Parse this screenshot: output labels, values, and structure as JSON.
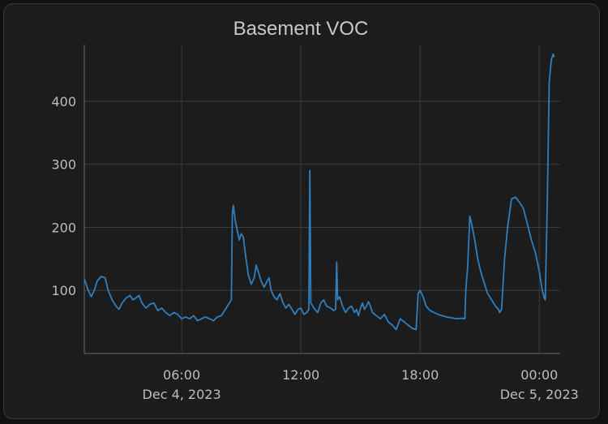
{
  "colors": {
    "background": "#1c1c1c",
    "grid": "#3c3c3c",
    "line": "#2f7fbf",
    "text": "#bdbdbd"
  },
  "chart_data": {
    "type": "line",
    "title": "Basement VOC",
    "xlabel": "",
    "ylabel": "",
    "x_unit": "hours since 00:00 Dec 4, 2023",
    "xlim": [
      1.1,
      25.05
    ],
    "ylim": [
      0,
      490
    ],
    "y_ticks": [
      100,
      200,
      300,
      400
    ],
    "x_ticks": [
      {
        "x": 6,
        "label": "06:00",
        "sublabel": "Dec 4, 2023"
      },
      {
        "x": 12,
        "label": "12:00",
        "sublabel": ""
      },
      {
        "x": 18,
        "label": "18:00",
        "sublabel": ""
      },
      {
        "x": 24,
        "label": "00:00",
        "sublabel": "Dec 5, 2023"
      }
    ],
    "series": [
      {
        "name": "Basement VOC",
        "points": [
          [
            1.1,
            118
          ],
          [
            1.3,
            100
          ],
          [
            1.45,
            90
          ],
          [
            1.6,
            100
          ],
          [
            1.75,
            115
          ],
          [
            1.95,
            122
          ],
          [
            2.15,
            120
          ],
          [
            2.3,
            100
          ],
          [
            2.5,
            85
          ],
          [
            2.7,
            75
          ],
          [
            2.85,
            70
          ],
          [
            3.0,
            80
          ],
          [
            3.2,
            88
          ],
          [
            3.4,
            92
          ],
          [
            3.55,
            85
          ],
          [
            3.7,
            88
          ],
          [
            3.85,
            92
          ],
          [
            4.0,
            80
          ],
          [
            4.2,
            72
          ],
          [
            4.4,
            78
          ],
          [
            4.6,
            80
          ],
          [
            4.8,
            68
          ],
          [
            5.0,
            72
          ],
          [
            5.2,
            65
          ],
          [
            5.4,
            60
          ],
          [
            5.6,
            65
          ],
          [
            5.8,
            62
          ],
          [
            6.0,
            55
          ],
          [
            6.2,
            58
          ],
          [
            6.4,
            55
          ],
          [
            6.6,
            60
          ],
          [
            6.8,
            52
          ],
          [
            7.0,
            55
          ],
          [
            7.2,
            58
          ],
          [
            7.4,
            55
          ],
          [
            7.6,
            52
          ],
          [
            7.8,
            58
          ],
          [
            8.0,
            60
          ],
          [
            8.2,
            70
          ],
          [
            8.4,
            80
          ],
          [
            8.5,
            85
          ],
          [
            8.55,
            220
          ],
          [
            8.6,
            235
          ],
          [
            8.7,
            210
          ],
          [
            8.8,
            195
          ],
          [
            8.9,
            180
          ],
          [
            9.0,
            190
          ],
          [
            9.1,
            185
          ],
          [
            9.2,
            160
          ],
          [
            9.35,
            125
          ],
          [
            9.5,
            110
          ],
          [
            9.65,
            120
          ],
          [
            9.75,
            140
          ],
          [
            9.85,
            130
          ],
          [
            10.0,
            115
          ],
          [
            10.15,
            105
          ],
          [
            10.3,
            115
          ],
          [
            10.4,
            120
          ],
          [
            10.5,
            100
          ],
          [
            10.65,
            90
          ],
          [
            10.8,
            85
          ],
          [
            10.95,
            95
          ],
          [
            11.1,
            80
          ],
          [
            11.25,
            72
          ],
          [
            11.4,
            78
          ],
          [
            11.55,
            70
          ],
          [
            11.7,
            62
          ],
          [
            11.85,
            70
          ],
          [
            12.0,
            72
          ],
          [
            12.15,
            62
          ],
          [
            12.3,
            65
          ],
          [
            12.4,
            70
          ],
          [
            12.45,
            290
          ],
          [
            12.5,
            80
          ],
          [
            12.6,
            75
          ],
          [
            12.7,
            70
          ],
          [
            12.85,
            65
          ],
          [
            13.0,
            80
          ],
          [
            13.15,
            85
          ],
          [
            13.3,
            75
          ],
          [
            13.5,
            72
          ],
          [
            13.65,
            68
          ],
          [
            13.75,
            70
          ],
          [
            13.8,
            145
          ],
          [
            13.85,
            85
          ],
          [
            13.95,
            90
          ],
          [
            14.1,
            75
          ],
          [
            14.25,
            65
          ],
          [
            14.4,
            72
          ],
          [
            14.55,
            75
          ],
          [
            14.7,
            65
          ],
          [
            14.8,
            70
          ],
          [
            14.9,
            60
          ],
          [
            15.0,
            72
          ],
          [
            15.1,
            80
          ],
          [
            15.2,
            70
          ],
          [
            15.3,
            75
          ],
          [
            15.4,
            82
          ],
          [
            15.5,
            75
          ],
          [
            15.6,
            65
          ],
          [
            15.8,
            60
          ],
          [
            16.0,
            55
          ],
          [
            16.2,
            62
          ],
          [
            16.4,
            50
          ],
          [
            16.6,
            45
          ],
          [
            16.8,
            38
          ],
          [
            17.0,
            55
          ],
          [
            17.2,
            50
          ],
          [
            17.4,
            45
          ],
          [
            17.6,
            40
          ],
          [
            17.8,
            38
          ],
          [
            17.9,
            95
          ],
          [
            18.0,
            100
          ],
          [
            18.15,
            90
          ],
          [
            18.3,
            75
          ],
          [
            18.5,
            68
          ],
          [
            18.7,
            65
          ],
          [
            18.9,
            62
          ],
          [
            19.1,
            60
          ],
          [
            19.3,
            58
          ],
          [
            19.5,
            57
          ],
          [
            19.7,
            56
          ],
          [
            19.9,
            55
          ],
          [
            20.1,
            56
          ],
          [
            20.25,
            55
          ],
          [
            20.3,
            100
          ],
          [
            20.4,
            140
          ],
          [
            20.5,
            218
          ],
          [
            20.6,
            205
          ],
          [
            20.75,
            180
          ],
          [
            20.9,
            150
          ],
          [
            21.05,
            130
          ],
          [
            21.2,
            115
          ],
          [
            21.4,
            95
          ],
          [
            21.6,
            85
          ],
          [
            21.8,
            75
          ],
          [
            21.95,
            70
          ],
          [
            22.0,
            65
          ],
          [
            22.1,
            70
          ],
          [
            22.25,
            150
          ],
          [
            22.4,
            200
          ],
          [
            22.6,
            245
          ],
          [
            22.8,
            248
          ],
          [
            23.0,
            240
          ],
          [
            23.2,
            230
          ],
          [
            23.4,
            205
          ],
          [
            23.6,
            180
          ],
          [
            23.8,
            160
          ],
          [
            24.0,
            130
          ],
          [
            24.15,
            100
          ],
          [
            24.25,
            88
          ],
          [
            24.3,
            85
          ],
          [
            24.4,
            240
          ],
          [
            24.5,
            430
          ],
          [
            24.6,
            465
          ],
          [
            24.7,
            475
          ],
          [
            24.75,
            470
          ]
        ]
      }
    ]
  }
}
